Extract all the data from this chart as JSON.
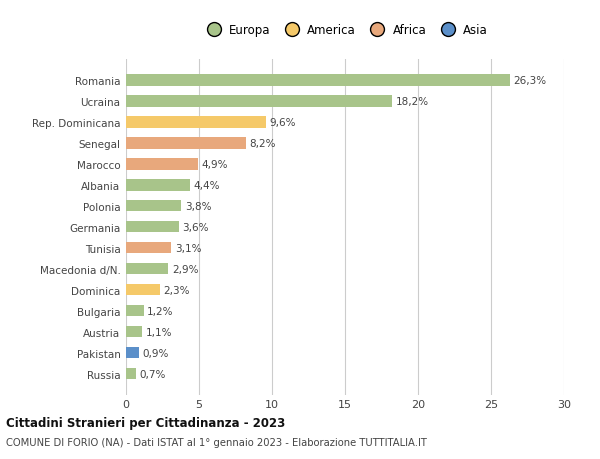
{
  "countries": [
    "Romania",
    "Ucraina",
    "Rep. Dominicana",
    "Senegal",
    "Marocco",
    "Albania",
    "Polonia",
    "Germania",
    "Tunisia",
    "Macedonia d/N.",
    "Dominica",
    "Bulgaria",
    "Austria",
    "Pakistan",
    "Russia"
  ],
  "values": [
    26.3,
    18.2,
    9.6,
    8.2,
    4.9,
    4.4,
    3.8,
    3.6,
    3.1,
    2.9,
    2.3,
    1.2,
    1.1,
    0.9,
    0.7
  ],
  "labels": [
    "26,3%",
    "18,2%",
    "9,6%",
    "8,2%",
    "4,9%",
    "4,4%",
    "3,8%",
    "3,6%",
    "3,1%",
    "2,9%",
    "2,3%",
    "1,2%",
    "1,1%",
    "0,9%",
    "0,7%"
  ],
  "colors": [
    "#a8c48a",
    "#a8c48a",
    "#f5c969",
    "#e8a87c",
    "#e8a87c",
    "#a8c48a",
    "#a8c48a",
    "#a8c48a",
    "#e8a87c",
    "#a8c48a",
    "#f5c969",
    "#a8c48a",
    "#a8c48a",
    "#5b8fc9",
    "#a8c48a"
  ],
  "legend_labels": [
    "Europa",
    "America",
    "Africa",
    "Asia"
  ],
  "legend_colors": [
    "#a8c48a",
    "#f5c969",
    "#e8a87c",
    "#5b8fc9"
  ],
  "title": "Cittadini Stranieri per Cittadinanza - 2023",
  "subtitle": "COMUNE DI FORIO (NA) - Dati ISTAT al 1° gennaio 2023 - Elaborazione TUTTITALIA.IT",
  "xlim": [
    0,
    30
  ],
  "xticks": [
    0,
    5,
    10,
    15,
    20,
    25,
    30
  ],
  "background_color": "#ffffff",
  "grid_color": "#cccccc"
}
